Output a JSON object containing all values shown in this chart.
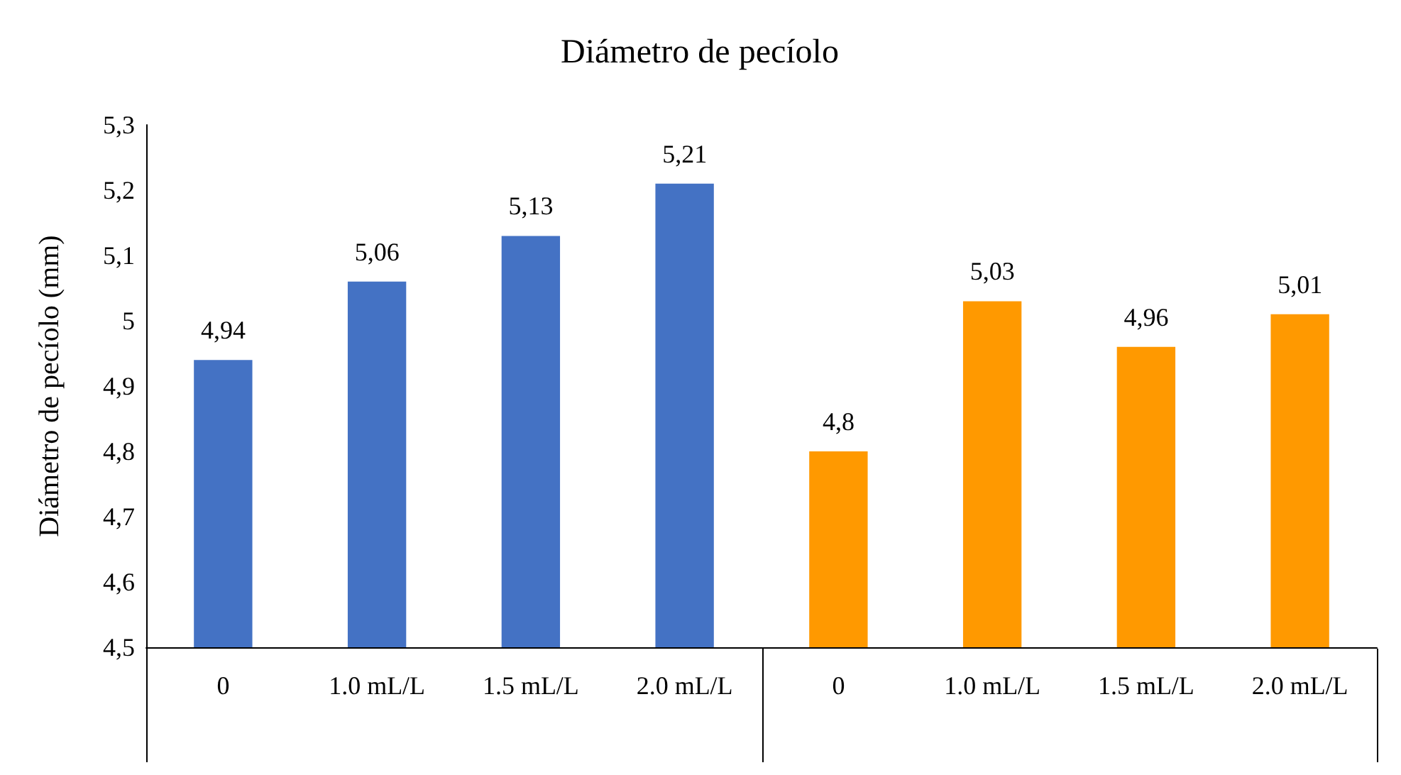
{
  "chart_data": {
    "type": "bar",
    "title": "Diámetro de pecíolo",
    "ylabel": "Diámetro de pecíolo (mm)",
    "categories": [
      "0",
      "1.0 mL/L",
      "1.5 mL/L",
      "2.0 mL/L",
      "0",
      "1.0 mL/L",
      "1.5 mL/L",
      "2.0 mL/L"
    ],
    "values": [
      4.94,
      5.06,
      5.13,
      5.21,
      4.8,
      5.03,
      4.96,
      5.01
    ],
    "value_labels": [
      "4,94",
      "5,06",
      "5,13",
      "5,21",
      "4,8",
      "5,03",
      "4,96",
      "5,01"
    ],
    "colors": [
      "#4472c4",
      "#4472c4",
      "#4472c4",
      "#4472c4",
      "#ff9900",
      "#ff9900",
      "#ff9900",
      "#ff9900"
    ],
    "ylim": [
      4.5,
      5.3
    ],
    "yticks": [
      {
        "value": 4.5,
        "label": "4,5"
      },
      {
        "value": 4.6,
        "label": "4,6"
      },
      {
        "value": 4.7,
        "label": "4,7"
      },
      {
        "value": 4.8,
        "label": "4,8"
      },
      {
        "value": 4.9,
        "label": "4,9"
      },
      5,
      {
        "value": 5.1,
        "label": "5,1"
      },
      {
        "value": 5.2,
        "label": "5,2"
      },
      {
        "value": 5.3,
        "label": "5,3"
      }
    ],
    "grid": false
  }
}
